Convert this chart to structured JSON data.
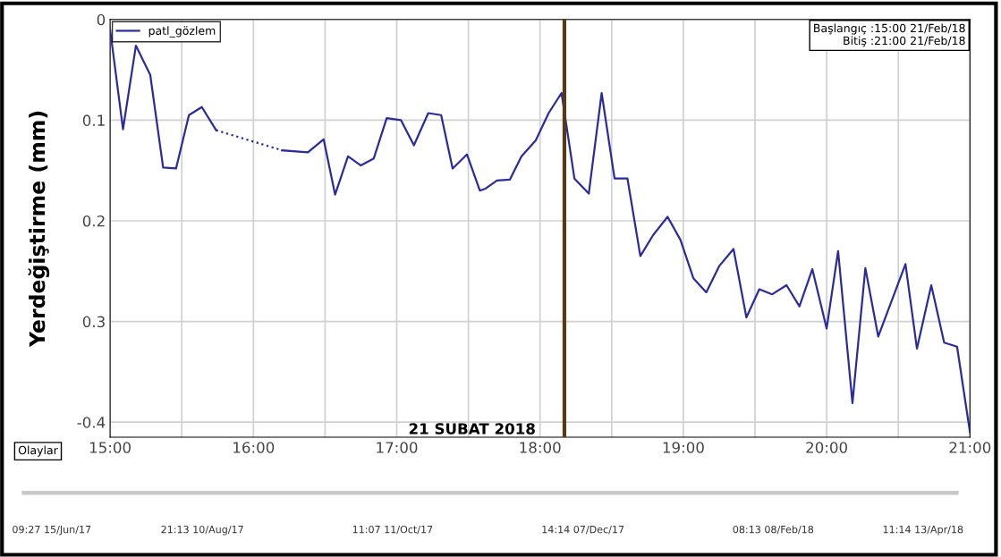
{
  "chart_data": {
    "type": "line",
    "ylabel": "Yerdeğiştirme (mm)",
    "series": [
      {
        "name": "patl_gözlem",
        "color": "#2b2b9c",
        "x": [
          15.0,
          15.09,
          15.18,
          15.28,
          15.37,
          15.46,
          15.55,
          15.64,
          15.74
        ],
        "values": [
          -0.01,
          -0.109,
          -0.026,
          -0.055,
          -0.147,
          -0.148,
          -0.095,
          -0.087,
          -0.11
        ]
      },
      {
        "color": "#2b2b9c",
        "line_style": "dotted",
        "x": [
          15.74,
          16.2
        ],
        "values": [
          -0.11,
          -0.13
        ]
      },
      {
        "color": "#2b2b9c",
        "x": [
          16.2,
          16.38,
          16.49,
          16.57,
          16.66,
          16.75,
          16.84,
          16.93,
          17.03,
          17.12,
          17.22,
          17.31,
          17.39,
          17.49,
          17.58,
          17.62,
          17.7,
          17.79,
          17.87,
          17.97,
          18.06,
          18.15,
          18.24,
          18.34,
          18.43,
          18.52,
          18.61,
          18.7,
          18.79,
          18.89,
          18.98,
          19.07,
          19.16,
          19.25,
          19.35,
          19.44,
          19.53,
          19.62,
          19.72,
          19.81,
          19.9,
          20.0,
          20.08,
          20.18,
          20.27,
          20.36,
          20.55,
          20.63,
          20.73,
          20.82,
          20.91,
          21.0
        ],
        "values": [
          -0.13,
          -0.132,
          -0.119,
          -0.174,
          -0.136,
          -0.145,
          -0.138,
          -0.098,
          -0.1,
          -0.125,
          -0.093,
          -0.095,
          -0.148,
          -0.134,
          -0.17,
          -0.168,
          -0.16,
          -0.159,
          -0.136,
          -0.12,
          -0.093,
          -0.073,
          -0.158,
          -0.173,
          -0.073,
          -0.158,
          -0.158,
          -0.235,
          -0.214,
          -0.196,
          -0.219,
          -0.257,
          -0.271,
          -0.245,
          -0.228,
          -0.296,
          -0.268,
          -0.273,
          -0.264,
          -0.285,
          -0.248,
          -0.307,
          -0.23,
          -0.381,
          -0.247,
          -0.315,
          -0.243,
          -0.327,
          -0.264,
          -0.321,
          -0.325,
          -0.41
        ]
      }
    ],
    "xlim": [
      15,
      21
    ],
    "ylim": [
      -0.415,
      0
    ],
    "xticks": [
      {
        "value": 15,
        "label": "15:00"
      },
      {
        "value": 15.5,
        "label": null
      },
      {
        "value": 16,
        "label": "16:00"
      },
      {
        "value": 16.5,
        "label": null
      },
      {
        "value": 17,
        "label": "17:00"
      },
      {
        "value": 17.5,
        "label": null
      },
      {
        "value": 18,
        "label": "18:00"
      },
      {
        "value": 18.5,
        "label": null
      },
      {
        "value": 19,
        "label": "19:00"
      },
      {
        "value": 19.5,
        "label": null
      },
      {
        "value": 20,
        "label": "20:00"
      },
      {
        "value": 20.5,
        "label": null
      },
      {
        "value": 21,
        "label": "21:00"
      }
    ],
    "yticks": [
      0,
      {
        "value": -0.1,
        "label": "0.1"
      },
      {
        "value": -0.2,
        "label": "0.2"
      },
      {
        "value": -0.3,
        "label": "0.3"
      },
      -0.4
    ],
    "ref_lines": [
      {
        "axis": "x",
        "value": 18.17,
        "label": "21 SUBAT 2018",
        "color": "#5a3814"
      }
    ],
    "grid": true,
    "legend": "top left",
    "marker": "none",
    "line_style": "solid",
    "annotations": [
      "Başlangıç :15:00 21/Feb/18",
      "Bitiş :21:00 21/Feb/18",
      "Olaylar",
      "09:27 15/Jun/17",
      "21:13 10/Aug/17",
      "11:07 11/Oct/17",
      "14:14 07/Dec/17",
      "08:13 08/Feb/18",
      "11:14 13/Apr/18"
    ]
  }
}
